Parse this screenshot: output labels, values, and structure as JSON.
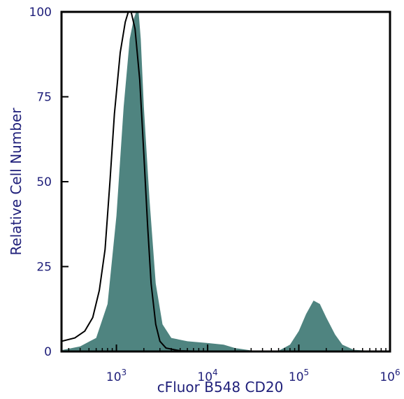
{
  "chart_data": {
    "type": "area",
    "title": "",
    "xlabel": "cFluor B548 CD20",
    "ylabel": "Relative Cell Number",
    "x_scale": "log",
    "xlim": [
      250,
      1000000
    ],
    "ylim": [
      0,
      100
    ],
    "x_ticks": [
      {
        "value": 1000,
        "base": "10",
        "exp": "3"
      },
      {
        "value": 10000,
        "base": "10",
        "exp": "4"
      },
      {
        "value": 100000,
        "base": "10",
        "exp": "5"
      },
      {
        "value": 1000000,
        "base": "10",
        "exp": "6"
      }
    ],
    "y_ticks": [
      "0",
      "25",
      "50",
      "75",
      "100"
    ],
    "grid": false,
    "legend": "none",
    "series": [
      {
        "style": "filled",
        "color": "#4f8480",
        "points": [
          [
            250,
            0.4
          ],
          [
            400,
            1.5
          ],
          [
            600,
            4
          ],
          [
            800,
            14
          ],
          [
            1000,
            40
          ],
          [
            1200,
            72
          ],
          [
            1400,
            92
          ],
          [
            1550,
            98
          ],
          [
            1650,
            100
          ],
          [
            1750,
            100
          ],
          [
            1850,
            92
          ],
          [
            2000,
            72
          ],
          [
            2300,
            45
          ],
          [
            2700,
            20
          ],
          [
            3200,
            8
          ],
          [
            4000,
            4
          ],
          [
            6000,
            3
          ],
          [
            10000,
            2.5
          ],
          [
            15000,
            2
          ],
          [
            20000,
            1
          ],
          [
            30000,
            0.3
          ],
          [
            60000,
            0.2
          ],
          [
            80000,
            2
          ],
          [
            100000,
            6
          ],
          [
            120000,
            11
          ],
          [
            145000,
            15
          ],
          [
            170000,
            14
          ],
          [
            200000,
            10
          ],
          [
            250000,
            5
          ],
          [
            300000,
            2
          ],
          [
            400000,
            0.5
          ],
          [
            600000,
            0.2
          ],
          [
            1000000,
            0.1
          ]
        ]
      },
      {
        "style": "outline",
        "color": "#000000",
        "points": [
          [
            250,
            3
          ],
          [
            350,
            4
          ],
          [
            450,
            6
          ],
          [
            550,
            10
          ],
          [
            650,
            18
          ],
          [
            750,
            30
          ],
          [
            850,
            50
          ],
          [
            950,
            70
          ],
          [
            1100,
            88
          ],
          [
            1250,
            97
          ],
          [
            1350,
            100
          ],
          [
            1450,
            100
          ],
          [
            1600,
            95
          ],
          [
            1800,
            80
          ],
          [
            2000,
            58
          ],
          [
            2200,
            37
          ],
          [
            2400,
            20
          ],
          [
            2700,
            8
          ],
          [
            3000,
            3
          ],
          [
            3500,
            1
          ],
          [
            5000,
            0.2
          ],
          [
            10000,
            0
          ],
          [
            1000000,
            0
          ]
        ]
      }
    ]
  }
}
